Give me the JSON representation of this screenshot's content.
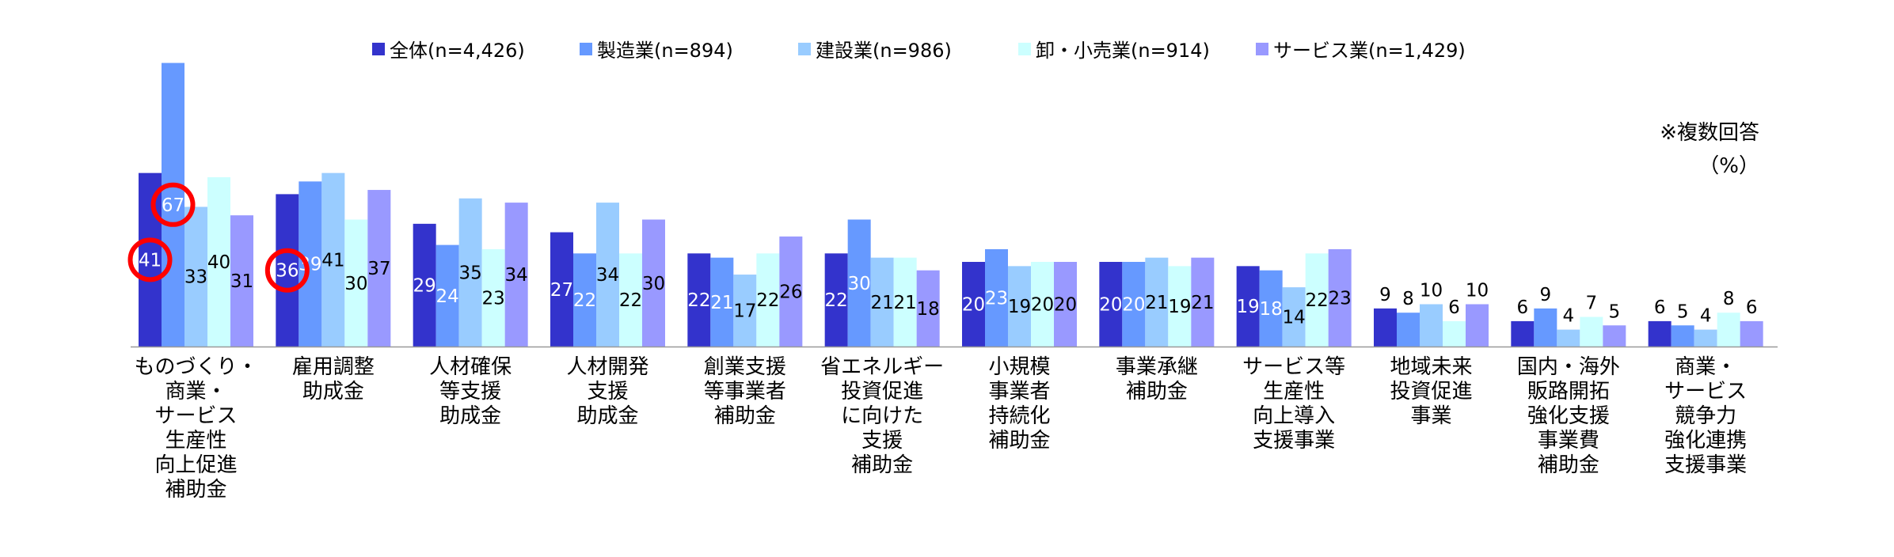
{
  "chart_data": {
    "type": "bar",
    "title": "",
    "xlabel": "",
    "ylabel": "",
    "ylim": [
      0,
      70
    ],
    "grid": false,
    "legend_position": "top",
    "note": "※複数回答",
    "unit": "（%）",
    "categories": [
      [
        "ものづくり・",
        "商業・",
        "サービス",
        "生産性",
        "向上促進",
        "補助金"
      ],
      [
        "雇用調整",
        "助成金"
      ],
      [
        "人材確保",
        "等支援",
        "助成金"
      ],
      [
        "人材開発",
        "支援",
        "助成金"
      ],
      [
        "創業支援",
        "等事業者",
        "補助金"
      ],
      [
        "省エネルギー",
        "投資促進",
        "に向けた",
        "支援",
        "補助金"
      ],
      [
        "小規模",
        "事業者",
        "持続化",
        "補助金"
      ],
      [
        "事業承継",
        "補助金"
      ],
      [
        "サービス等",
        "生産性",
        "向上導入",
        "支援事業"
      ],
      [
        "地域未来",
        "投資促進",
        "事業"
      ],
      [
        "国内・海外",
        "販路開拓",
        "強化支援",
        "事業費",
        "補助金"
      ],
      [
        "商業・",
        "サービス",
        "競争力",
        "強化連携",
        "支援事業"
      ]
    ],
    "series": [
      {
        "name": "全体(n=4,426)",
        "color": "#3333cc",
        "label_color": "#ffffff",
        "values": [
          41,
          36,
          29,
          27,
          22,
          22,
          20,
          20,
          19,
          9,
          6,
          6
        ]
      },
      {
        "name": "製造業(n=894)",
        "color": "#6699ff",
        "label_color": "#ffffff",
        "values": [
          67,
          39,
          24,
          22,
          21,
          30,
          23,
          20,
          18,
          8,
          9,
          5
        ]
      },
      {
        "name": "建設業(n=986)",
        "color": "#99ccff",
        "label_color": "#000000",
        "values": [
          33,
          41,
          35,
          34,
          17,
          21,
          19,
          21,
          14,
          10,
          4,
          4
        ]
      },
      {
        "name": "卸・小売業(n=914)",
        "color": "#ccffff",
        "label_color": "#000000",
        "values": [
          40,
          30,
          23,
          22,
          22,
          21,
          20,
          19,
          22,
          6,
          7,
          8
        ]
      },
      {
        "name": "サービス業(n=1,429)",
        "color": "#9999ff",
        "label_color": "#000000",
        "values": [
          31,
          37,
          34,
          30,
          26,
          18,
          20,
          21,
          23,
          10,
          5,
          6
        ]
      }
    ],
    "highlights": [
      {
        "series": 0,
        "category": 0,
        "value": 41
      },
      {
        "series": 1,
        "category": 0,
        "value": 67
      },
      {
        "series": 0,
        "category": 1,
        "value": 36
      }
    ],
    "highlight_color": "#ff0000"
  }
}
